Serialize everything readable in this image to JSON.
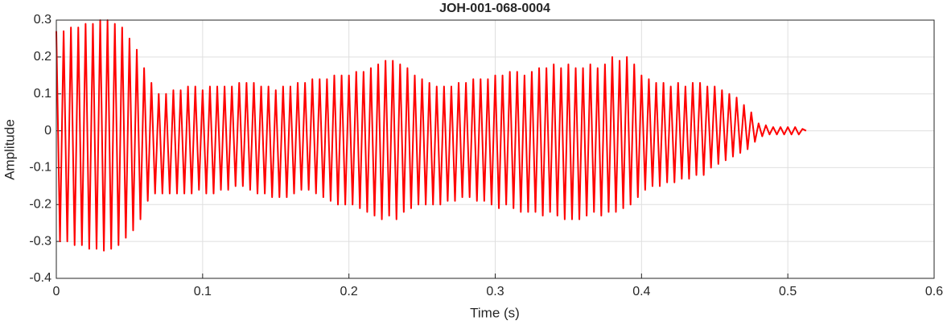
{
  "chart_data": {
    "type": "line",
    "title": "JOH-001-068-0004",
    "xlabel": "Time (s)",
    "ylabel": "Amplitude",
    "xlim": [
      0,
      0.6
    ],
    "ylim": [
      -0.4,
      0.3
    ],
    "xticks": [
      0,
      0.1,
      0.2,
      0.3,
      0.4,
      0.5,
      0.6
    ],
    "yticks": [
      -0.4,
      -0.3,
      -0.2,
      -0.1,
      0,
      0.1,
      0.2,
      0.3
    ],
    "grid": true,
    "x": [
      0,
      0.0025,
      0.005,
      0.0075,
      0.01,
      0.0125,
      0.015,
      0.0175,
      0.02,
      0.0225,
      0.025,
      0.0275,
      0.03,
      0.0325,
      0.035,
      0.0375,
      0.04,
      0.0425,
      0.045,
      0.0475,
      0.05,
      0.0525,
      0.055,
      0.0575,
      0.06,
      0.0625,
      0.065,
      0.0675,
      0.07,
      0.0725,
      0.075,
      0.0775,
      0.08,
      0.0825,
      0.085,
      0.0875,
      0.09,
      0.0925,
      0.095,
      0.0975,
      0.1,
      0.1025,
      0.105,
      0.1075,
      0.11,
      0.1125,
      0.115,
      0.1175,
      0.12,
      0.1225,
      0.125,
      0.1275,
      0.13,
      0.1325,
      0.135,
      0.1375,
      0.14,
      0.1425,
      0.145,
      0.1475,
      0.15,
      0.1525,
      0.155,
      0.1575,
      0.16,
      0.1625,
      0.165,
      0.1675,
      0.17,
      0.1725,
      0.175,
      0.1775,
      0.18,
      0.1825,
      0.185,
      0.1875,
      0.19,
      0.1925,
      0.195,
      0.1975,
      0.2,
      0.2025,
      0.205,
      0.2075,
      0.21,
      0.2125,
      0.215,
      0.2175,
      0.22,
      0.2225,
      0.225,
      0.2275,
      0.23,
      0.2325,
      0.235,
      0.2375,
      0.24,
      0.2425,
      0.245,
      0.2475,
      0.25,
      0.2525,
      0.255,
      0.2575,
      0.26,
      0.2625,
      0.265,
      0.2675,
      0.27,
      0.2725,
      0.275,
      0.2775,
      0.28,
      0.2825,
      0.285,
      0.2875,
      0.29,
      0.2925,
      0.295,
      0.2975,
      0.3,
      0.3025,
      0.305,
      0.3075,
      0.31,
      0.3125,
      0.315,
      0.3175,
      0.32,
      0.3225,
      0.325,
      0.3275,
      0.33,
      0.3325,
      0.335,
      0.3375,
      0.34,
      0.3425,
      0.345,
      0.3475,
      0.35,
      0.3525,
      0.355,
      0.3575,
      0.36,
      0.3625,
      0.365,
      0.3675,
      0.37,
      0.3725,
      0.375,
      0.3775,
      0.38,
      0.3825,
      0.385,
      0.3875,
      0.39,
      0.3925,
      0.395,
      0.3975,
      0.4,
      0.4025,
      0.405,
      0.4075,
      0.41,
      0.4125,
      0.415,
      0.4175,
      0.42,
      0.4225,
      0.425,
      0.4275,
      0.43,
      0.4325,
      0.435,
      0.4375,
      0.44,
      0.4425,
      0.445,
      0.4475,
      0.45,
      0.4525,
      0.455,
      0.4575,
      0.46,
      0.4625,
      0.465,
      0.4675,
      0.47,
      0.4725,
      0.475,
      0.4775,
      0.48,
      0.4825,
      0.485,
      0.4875,
      0.49,
      0.4925,
      0.495,
      0.4975,
      0.5,
      0.5025,
      0.505,
      0.5075,
      0.51,
      0.5125
    ],
    "series": [
      {
        "color": "#ff0000",
        "values": [
          0.27,
          -0.3,
          0.27,
          -0.3,
          0.28,
          -0.31,
          0.28,
          -0.31,
          0.29,
          -0.32,
          0.29,
          -0.32,
          0.3,
          -0.325,
          0.3,
          -0.32,
          0.29,
          -0.31,
          0.28,
          -0.29,
          0.25,
          -0.27,
          0.22,
          -0.24,
          0.17,
          -0.19,
          0.13,
          -0.17,
          0.1,
          -0.17,
          0.1,
          -0.17,
          0.11,
          -0.17,
          0.11,
          -0.17,
          0.12,
          -0.17,
          0.12,
          -0.16,
          0.11,
          -0.17,
          0.12,
          -0.17,
          0.12,
          -0.16,
          0.12,
          -0.16,
          0.12,
          -0.15,
          0.13,
          -0.15,
          0.13,
          -0.16,
          0.13,
          -0.17,
          0.12,
          -0.17,
          0.12,
          -0.18,
          0.11,
          -0.18,
          0.12,
          -0.18,
          0.12,
          -0.17,
          0.13,
          -0.16,
          0.13,
          -0.16,
          0.14,
          -0.17,
          0.14,
          -0.18,
          0.14,
          -0.19,
          0.15,
          -0.2,
          0.15,
          -0.2,
          0.15,
          -0.2,
          0.16,
          -0.21,
          0.16,
          -0.22,
          0.17,
          -0.23,
          0.18,
          -0.24,
          0.19,
          -0.23,
          0.19,
          -0.24,
          0.18,
          -0.22,
          0.17,
          -0.21,
          0.15,
          -0.2,
          0.14,
          -0.2,
          0.13,
          -0.2,
          0.12,
          -0.2,
          0.12,
          -0.19,
          0.12,
          -0.19,
          0.13,
          -0.18,
          0.13,
          -0.18,
          0.14,
          -0.19,
          0.14,
          -0.19,
          0.14,
          -0.2,
          0.15,
          -0.21,
          0.15,
          -0.2,
          0.16,
          -0.21,
          0.16,
          -0.22,
          0.15,
          -0.22,
          0.16,
          -0.22,
          0.17,
          -0.23,
          0.17,
          -0.22,
          0.18,
          -0.23,
          0.17,
          -0.24,
          0.18,
          -0.24,
          0.17,
          -0.24,
          0.17,
          -0.23,
          0.18,
          -0.22,
          0.17,
          -0.23,
          0.18,
          -0.22,
          0.2,
          -0.22,
          0.19,
          -0.21,
          0.2,
          -0.2,
          0.18,
          -0.18,
          0.15,
          -0.16,
          0.14,
          -0.15,
          0.13,
          -0.15,
          0.13,
          -0.14,
          0.12,
          -0.14,
          0.13,
          -0.13,
          0.12,
          -0.13,
          0.13,
          -0.12,
          0.13,
          -0.12,
          0.12,
          -0.1,
          0.12,
          -0.09,
          0.11,
          -0.08,
          0.1,
          -0.07,
          0.09,
          -0.06,
          0.07,
          -0.05,
          0.05,
          -0.03,
          0.02,
          -0.015,
          0.015,
          -0.01,
          0.01,
          -0.01,
          0.01,
          -0.01,
          0.01,
          -0.01,
          0.01,
          -0.01,
          0.005,
          0
        ]
      }
    ]
  }
}
